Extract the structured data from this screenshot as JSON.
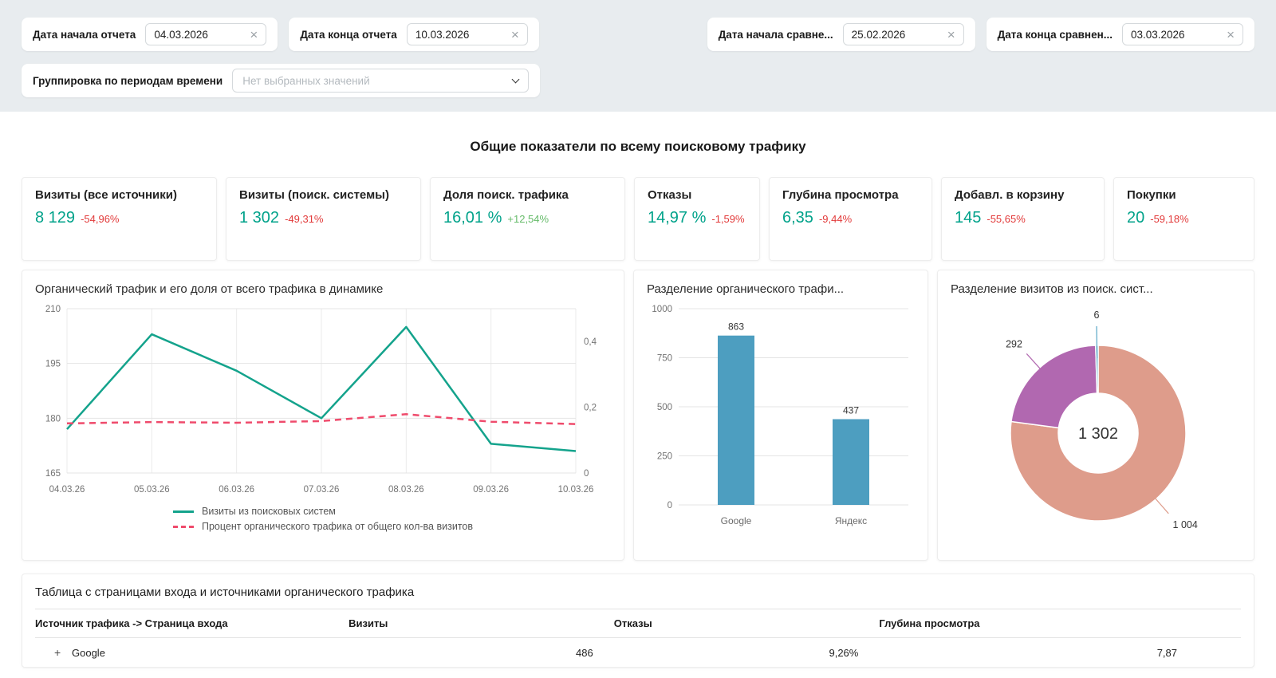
{
  "filters": {
    "clear_icon": "×",
    "report_start": {
      "label": "Дата начала отчета",
      "value": "04.03.2026"
    },
    "report_end": {
      "label": "Дата конца отчета",
      "value": "10.03.2026"
    },
    "compare_start": {
      "label": "Дата начала сравне...",
      "value": "25.02.2026"
    },
    "compare_end": {
      "label": "Дата конца сравнен...",
      "value": "03.03.2026"
    },
    "grouping": {
      "label": "Группировка по периодам времени",
      "placeholder": "Нет выбранных значений"
    }
  },
  "page_title": "Общие показатели по всему поисковому трафику",
  "kpis": [
    {
      "title": "Визиты (все источники)",
      "value": "8 129",
      "delta": "-54,96%"
    },
    {
      "title": "Визиты (поиск. системы)",
      "value": "1 302",
      "delta": "-49,31%"
    },
    {
      "title": "Доля поиск. трафика",
      "value": "16,01 %",
      "delta": "+12,54%"
    },
    {
      "title": "Отказы",
      "value": "14,97 %",
      "delta": "-1,59%"
    },
    {
      "title": "Глубина просмотра",
      "value": "6,35",
      "delta": "-9,44%"
    },
    {
      "title": "Добавл. в корзину",
      "value": "145",
      "delta": "-55,65%"
    },
    {
      "title": "Покупки",
      "value": "20",
      "delta": "-59,18%"
    }
  ],
  "chart_data": [
    {
      "type": "line",
      "title": "Органический трафик и его доля от всего трафика в динамике",
      "x": [
        "04.03.26",
        "05.03.26",
        "06.03.26",
        "07.03.26",
        "08.03.26",
        "09.03.26",
        "10.03.26"
      ],
      "series": [
        {
          "name": "Визиты из поисковых систем",
          "axis": "left",
          "style": "solid",
          "color": "#14a38c",
          "values": [
            177,
            203,
            193,
            180,
            205,
            173,
            171
          ]
        },
        {
          "name": "Процент органического трафика от общего кол-ва визитов",
          "axis": "right",
          "style": "dashed",
          "color": "#ef4b6c",
          "values": [
            0.151,
            0.155,
            0.153,
            0.158,
            0.179,
            0.156,
            0.149
          ]
        }
      ],
      "left_ylim": [
        165,
        210
      ],
      "left_ticks": [
        210,
        195,
        180,
        165
      ],
      "right_ylim": [
        0,
        0.5
      ],
      "right_ticks": [
        {
          "v": 0.4,
          "label": "0,4"
        },
        {
          "v": 0.2,
          "label": "0,2"
        },
        {
          "v": 0,
          "label": "0"
        }
      ],
      "grid": true,
      "legend_position": "bottom"
    },
    {
      "type": "bar",
      "title": "Разделение органического трафи...",
      "categories": [
        "Google",
        "Яндекс"
      ],
      "values": [
        863,
        437
      ],
      "ylim": [
        0,
        1000
      ],
      "yticks": [
        0,
        250,
        500,
        750,
        1000
      ],
      "bar_color": "#4d9ec0",
      "grid": true
    },
    {
      "type": "pie",
      "title": "Разделение визитов из поиск. сист...",
      "center_label": "1 302",
      "slices": [
        {
          "label": "1 004",
          "value": 1004,
          "color": "#de9c8b"
        },
        {
          "label": "292",
          "value": 292,
          "color": "#b168b0"
        },
        {
          "label": "6",
          "value": 6,
          "color": "#57a6c6"
        }
      ]
    }
  ],
  "table": {
    "title": "Таблица с страницами входа и источниками органического трафика",
    "columns": [
      "Источник трафика -> Страница входа",
      "Визиты",
      "Отказы",
      "Глубина просмотра"
    ],
    "rows": [
      {
        "expand_icon": "+",
        "cells": [
          "Google",
          "486",
          "9,26%",
          "7,87"
        ]
      }
    ]
  },
  "colors": {
    "metric_teal": "#00a28a",
    "delta_negative": "#e23a3a",
    "delta_positive": "#66bb6a",
    "filter_band_bg": "#e8ecef",
    "bar_blue": "#4d9ec0",
    "donut_salmon": "#de9c8b",
    "donut_purple": "#b168b0",
    "donut_blue": "#57a6c6",
    "line_teal": "#14a38c",
    "line_pink": "#ef4b6c"
  }
}
